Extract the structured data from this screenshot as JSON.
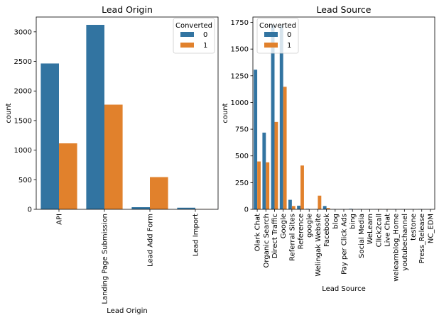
{
  "colors": {
    "series0": "#3274a1",
    "series1": "#e1812c"
  },
  "chart_data": [
    {
      "type": "bar",
      "title": "Lead Origin",
      "xlabel": "Lead Origin",
      "ylabel": "count",
      "ylim": [
        0,
        3250
      ],
      "yticks": [
        0,
        500,
        1000,
        1500,
        2000,
        2500,
        3000
      ],
      "categories": [
        "API",
        "Landing Page Submission",
        "Lead Add Form",
        "Lead Import"
      ],
      "series": [
        {
          "name": "0",
          "values": [
            2465,
            3118,
            36,
            27
          ]
        },
        {
          "name": "1",
          "values": [
            1115,
            1769,
            544,
            4
          ]
        }
      ],
      "legend": {
        "title": "Converted",
        "placement": "top-right"
      },
      "grid": false
    },
    {
      "type": "bar",
      "title": "Lead Source",
      "xlabel": "Lead Source",
      "ylabel": "count",
      "ylim": [
        0,
        1800
      ],
      "yticks": [
        0,
        250,
        500,
        750,
        1000,
        1250,
        1500,
        1750
      ],
      "categories": [
        "Olark Chat",
        "Organic Search",
        "Direct Traffic",
        "Google",
        "Referral Sites",
        "Reference",
        "google",
        "Welingak Website",
        "Facebook",
        "blog",
        "Pay per Click Ads",
        "bing",
        "Social Media",
        "WeLearn",
        "Click2call",
        "Live Chat",
        "welearnblog_Home",
        "youtubechannel",
        "testone",
        "Press_Release",
        "NC_EDM"
      ],
      "series": [
        {
          "name": "0",
          "values": [
            1307,
            718,
            1725,
            1720,
            89,
            34,
            5,
            2,
            31,
            1,
            1,
            5,
            2,
            1,
            1,
            0,
            1,
            1,
            1,
            2,
            0
          ]
        },
        {
          "name": "1",
          "values": [
            448,
            440,
            818,
            1147,
            31,
            410,
            0,
            128,
            12,
            0,
            0,
            1,
            0,
            0,
            3,
            2,
            0,
            0,
            0,
            0,
            1
          ]
        }
      ],
      "legend": {
        "title": "Converted",
        "placement": "top-left"
      },
      "grid": false
    }
  ]
}
